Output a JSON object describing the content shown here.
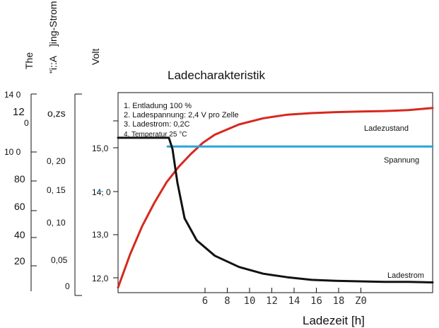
{
  "chart_data": {
    "type": "line",
    "title": "Ladecharakteristik",
    "xlabel": "Ladezeit [h]",
    "x_ticks": [
      "6",
      "8",
      "10",
      "12",
      "14",
      "16",
      "18",
      "Z0"
    ],
    "xlim": [
      0,
      26
    ],
    "axes": {
      "temperature": {
        "label": "The",
        "ticks": [
          "14 0",
          "12",
          "0",
          "10 0",
          "80",
          "60",
          "40",
          "20"
        ]
      },
      "current": {
        "label": "]ing-Strom",
        "label2": "\"i::A",
        "ticks": [
          "o,zs",
          "0, 20",
          "0, 15",
          "0, 10",
          "0,05",
          "0"
        ]
      },
      "voltage": {
        "label": "Volt",
        "ticks": [
          "15,0",
          "14, 0",
          "13,0",
          "12,0"
        ],
        "ylim": [
          11.7,
          15.6
        ]
      }
    },
    "annotations": [
      "1. Entladung 100 %",
      "2. Ladespannung: 2,4 V pro Zelle",
      "3. Ladestrom: 0,2C",
      "4. Temperatur 25 °C"
    ],
    "series": [
      {
        "name": "Ladezustand",
        "color": "#d7281e",
        "axis": "voltage",
        "x": [
          0,
          1,
          2,
          3,
          4,
          5,
          6,
          7,
          8,
          10,
          12,
          14,
          16,
          18,
          20,
          22,
          24,
          26
        ],
        "y": [
          11.8,
          12.45,
          13.0,
          13.45,
          13.85,
          14.15,
          14.4,
          14.62,
          14.78,
          14.98,
          15.1,
          15.17,
          15.2,
          15.22,
          15.23,
          15.24,
          15.26,
          15.3
        ]
      },
      {
        "name": "Spannung",
        "color": "#2ea3d8",
        "axis": "voltage",
        "x": [
          4.1,
          26
        ],
        "y": [
          14.55,
          14.55
        ]
      },
      {
        "name": "Ladestrom",
        "color": "#111111",
        "axis": "voltage",
        "x": [
          0,
          4.2,
          4.5,
          4.9,
          5.5,
          6.5,
          8,
          10,
          12,
          14,
          16,
          18,
          20,
          22,
          24,
          26
        ],
        "y": [
          14.72,
          14.72,
          14.5,
          13.85,
          13.15,
          12.72,
          12.42,
          12.2,
          12.07,
          12.0,
          11.95,
          11.93,
          11.92,
          11.91,
          11.91,
          11.9
        ]
      }
    ]
  }
}
